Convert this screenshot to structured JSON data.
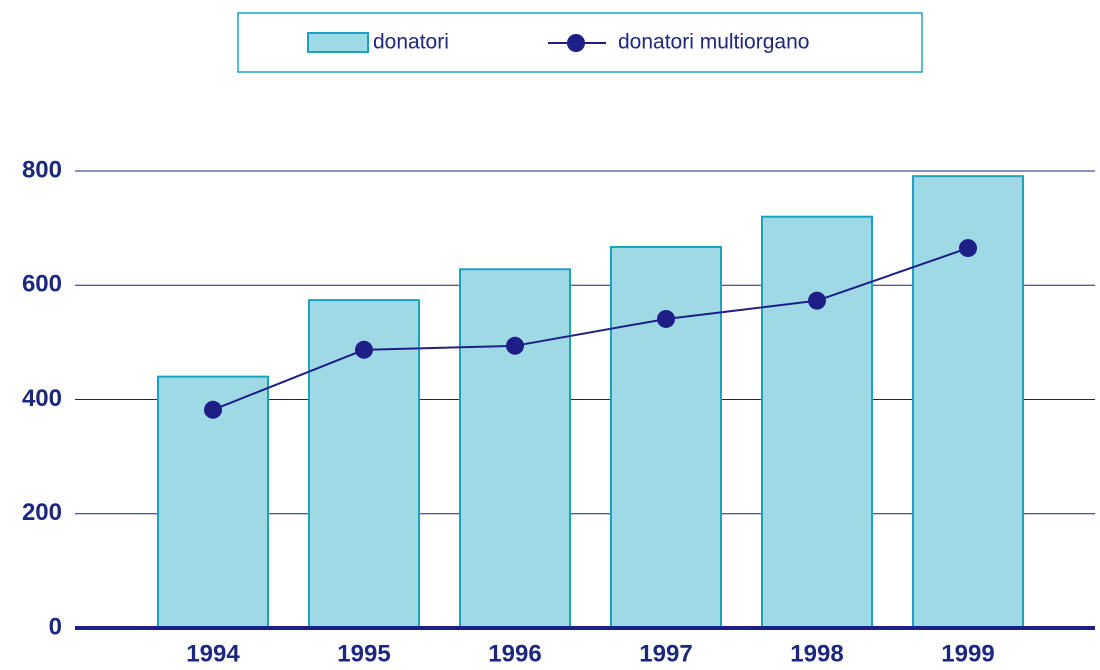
{
  "chart_data": {
    "type": "bar",
    "categories": [
      "1994",
      "1995",
      "1996",
      "1997",
      "1998",
      "1999"
    ],
    "series": [
      {
        "name": "donatori",
        "type": "bar",
        "color": "#9fd9e6",
        "values": [
          440,
          574,
          628,
          667,
          720,
          791
        ]
      },
      {
        "name": "donatori multiorgano",
        "type": "line",
        "color": "#1e1f86",
        "values": [
          382,
          487,
          494,
          541,
          573,
          665
        ]
      }
    ],
    "ylim": [
      0,
      800
    ],
    "yticks": [
      0,
      200,
      400,
      600,
      800
    ],
    "grid": true,
    "legend": "top"
  }
}
